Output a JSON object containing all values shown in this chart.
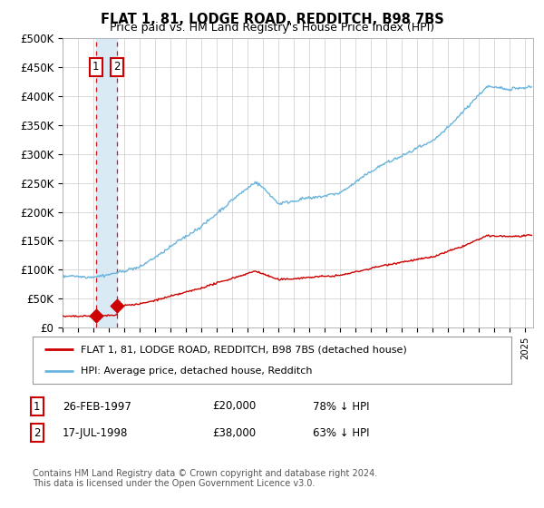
{
  "title": "FLAT 1, 81, LODGE ROAD, REDDITCH, B98 7BS",
  "subtitle": "Price paid vs. HM Land Registry's House Price Index (HPI)",
  "ylim": [
    0,
    500000
  ],
  "yticks": [
    0,
    50000,
    100000,
    150000,
    200000,
    250000,
    300000,
    350000,
    400000,
    450000,
    500000
  ],
  "ytick_labels": [
    "£0",
    "£50K",
    "£100K",
    "£150K",
    "£200K",
    "£250K",
    "£300K",
    "£350K",
    "£400K",
    "£450K",
    "£500K"
  ],
  "xlim_start": 1995.0,
  "xlim_end": 2025.5,
  "hpi_color": "#6ab4dc",
  "price_color": "#cc0000",
  "purchase1_year": 1997.15,
  "purchase1_price": 20000,
  "purchase2_year": 1998.54,
  "purchase2_price": 38000,
  "hpi_base_value": 88000,
  "legend_line1": "FLAT 1, 81, LODGE ROAD, REDDITCH, B98 7BS (detached house)",
  "legend_line2": "HPI: Average price, detached house, Redditch",
  "table_row1_num": "1",
  "table_row1_date": "26-FEB-1997",
  "table_row1_price": "£20,000",
  "table_row1_hpi": "78% ↓ HPI",
  "table_row2_num": "2",
  "table_row2_date": "17-JUL-1998",
  "table_row2_price": "£38,000",
  "table_row2_hpi": "63% ↓ HPI",
  "footnote1": "Contains HM Land Registry data © Crown copyright and database right 2024.",
  "footnote2": "This data is licensed under the Open Government Licence v3.0.",
  "bg_color": "#ffffff",
  "grid_color": "#cccccc",
  "shade_color": "#daeaf5"
}
